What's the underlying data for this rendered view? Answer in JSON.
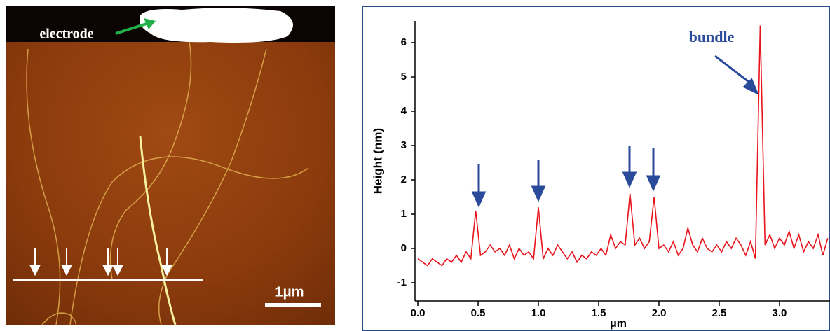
{
  "image": {
    "label": "electrode",
    "scale_bar": "1μm"
  },
  "chart_data": {
    "type": "line",
    "x_label": "μm",
    "y_label": "Height (nm)",
    "annotation": "bundle",
    "xlim": [
      -0.02,
      3.42
    ],
    "ylim": [
      -1.5,
      6.6
    ],
    "xticks": [
      {
        "value": 0,
        "label": "0.0"
      },
      0.5,
      {
        "value": 1,
        "label": "1.0"
      },
      1.5,
      {
        "value": 2,
        "label": "2.0"
      },
      2.5,
      {
        "value": 3,
        "label": "3.0"
      }
    ],
    "yticks": [
      -1,
      0,
      1,
      2,
      3,
      4,
      5,
      6
    ],
    "grid": false,
    "x": [
      0,
      0.04,
      0.08,
      0.12,
      0.16,
      0.2,
      0.24,
      0.28,
      0.32,
      0.36,
      0.4,
      0.44,
      0.48,
      0.52,
      0.56,
      0.6,
      0.64,
      0.68,
      0.72,
      0.76,
      0.8,
      0.84,
      0.88,
      0.92,
      0.96,
      1.0,
      1.04,
      1.08,
      1.12,
      1.16,
      1.2,
      1.24,
      1.28,
      1.32,
      1.36,
      1.4,
      1.44,
      1.48,
      1.52,
      1.56,
      1.6,
      1.64,
      1.68,
      1.72,
      1.76,
      1.8,
      1.84,
      1.88,
      1.92,
      1.96,
      2.0,
      2.04,
      2.08,
      2.12,
      2.16,
      2.2,
      2.24,
      2.28,
      2.32,
      2.36,
      2.4,
      2.44,
      2.48,
      2.52,
      2.56,
      2.6,
      2.64,
      2.68,
      2.72,
      2.76,
      2.8,
      2.84,
      2.88,
      2.92,
      2.96,
      3.0,
      3.04,
      3.08,
      3.12,
      3.16,
      3.2,
      3.24,
      3.28,
      3.32,
      3.36,
      3.4
    ],
    "series": [
      {
        "color": "#e8141c",
        "values": [
          -0.3,
          -0.4,
          -0.5,
          -0.3,
          -0.4,
          -0.5,
          -0.3,
          -0.4,
          -0.2,
          -0.4,
          -0.1,
          -0.3,
          1.1,
          -0.2,
          -0.1,
          0.1,
          -0.1,
          0.0,
          -0.2,
          0.1,
          -0.3,
          0.0,
          -0.2,
          -0.1,
          -0.3,
          1.2,
          -0.3,
          0.0,
          -0.2,
          0.1,
          -0.1,
          -0.3,
          -0.1,
          -0.4,
          -0.2,
          -0.3,
          -0.1,
          -0.2,
          0.0,
          -0.2,
          0.4,
          0.0,
          0.2,
          0.1,
          1.6,
          0.1,
          0.3,
          0.0,
          0.2,
          1.5,
          0.0,
          0.1,
          -0.1,
          0.2,
          -0.2,
          0.0,
          0.6,
          0.1,
          -0.1,
          0.3,
          0.0,
          -0.1,
          0.1,
          -0.1,
          0.2,
          0.0,
          0.3,
          0.1,
          -0.2,
          0.2,
          -0.3,
          6.5,
          0.1,
          0.4,
          0.0,
          0.3,
          0.1,
          0.5,
          0.0,
          0.4,
          -0.1,
          0.2,
          0.0,
          0.4,
          -0.2,
          0.3
        ]
      }
    ]
  }
}
